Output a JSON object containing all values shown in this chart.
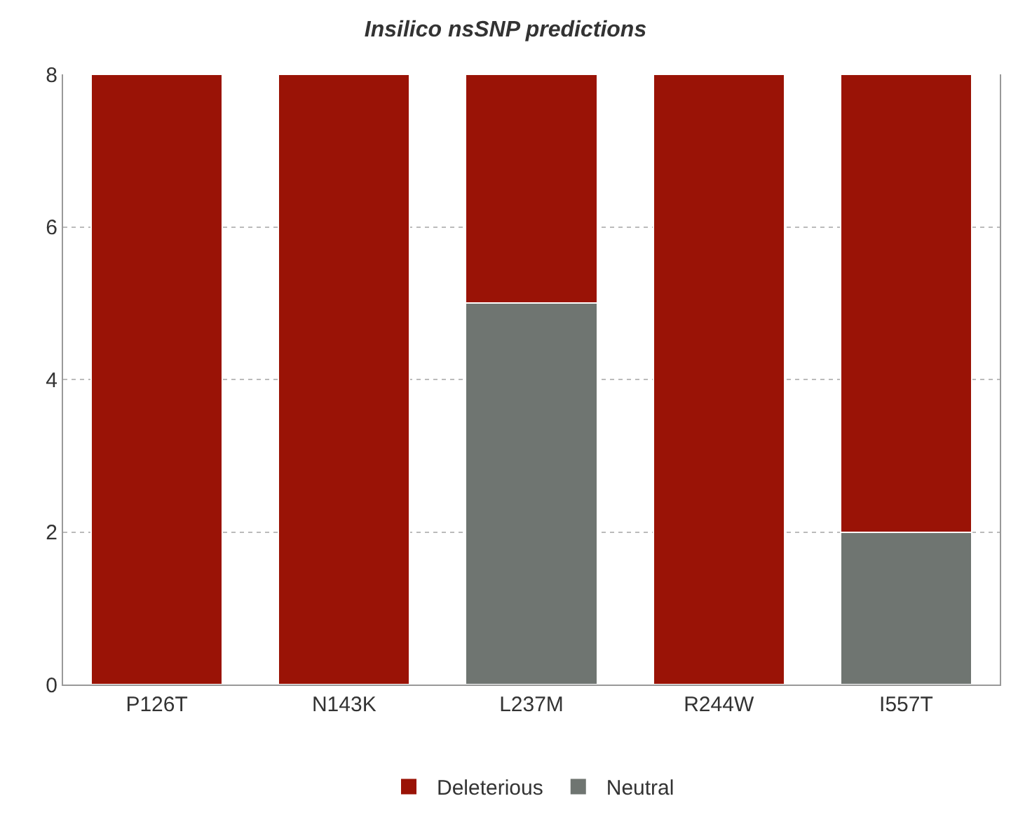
{
  "chart_data": {
    "type": "bar",
    "title": "Insilico nsSNP predictions",
    "stacked": true,
    "categories": [
      "P126T",
      "N143K",
      "L237M",
      "R244W",
      "I557T"
    ],
    "series": [
      {
        "name": "Neutral",
        "color": "#6f7571",
        "values": [
          0,
          0,
          5,
          0,
          2
        ]
      },
      {
        "name": "Deleterious",
        "color": "#9a1306",
        "values": [
          8,
          8,
          3,
          8,
          6
        ]
      }
    ],
    "ylim": [
      0,
      8
    ],
    "yticks": [
      0,
      2,
      4,
      6,
      8
    ],
    "grid": "y",
    "legend": "bottom"
  }
}
